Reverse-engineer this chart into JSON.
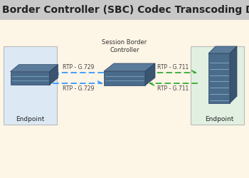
{
  "title": "Session Border Controller (SBC) Codec Transcoding Diagram",
  "title_fontsize": 10,
  "title_color": "#222222",
  "background_color": "#fdf5e6",
  "title_bg": "#c8c8c8",
  "left_box_color": "#dce9f5",
  "right_box_color": "#e2f0e2",
  "sbc_label": "Session Border\nController",
  "left_label": "Endpoint",
  "right_label": "Endpoint",
  "arrow_top_left_label": "RTP - G.729",
  "arrow_bot_left_label": "RTP - G.729",
  "arrow_top_right_label": "RTP - G.711",
  "arrow_bot_right_label": "RTP - G.711",
  "blue_color": "#3399ff",
  "green_color": "#33aa33",
  "label_fontsize": 5.5,
  "sbc_label_fontsize": 6,
  "endpoint_label_fontsize": 6.5,
  "device_color_front": "#4a6b8a",
  "device_color_top": "#5a7b9a",
  "device_color_right": "#3a5570",
  "device_edge": "#2a4060"
}
